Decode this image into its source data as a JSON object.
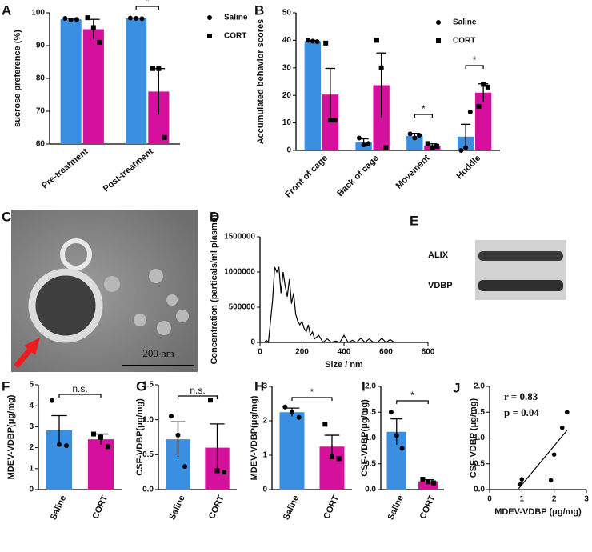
{
  "chart_data": [
    {
      "panel": "A",
      "type": "bar",
      "ylabel": "sucrose preference (%)",
      "categories": [
        "Pre-treatment",
        "Post-treatment"
      ],
      "ylim": [
        60,
        100
      ],
      "yticks": [
        60,
        70,
        80,
        90,
        100
      ],
      "series": [
        {
          "name": "Saline",
          "color": "#3b8fe0",
          "marker": "circle",
          "values": [
            98,
            98.3
          ],
          "errors": [
            0.3,
            0.1
          ],
          "points": [
            [
              98.3,
              97.8,
              98.0
            ],
            [
              98.4,
              98.3,
              98.2
            ]
          ]
        },
        {
          "name": "CORT",
          "color": "#d4109c",
          "marker": "square",
          "values": [
            95,
            76
          ],
          "errors": [
            3,
            7
          ],
          "points": [
            [
              98.5,
              95.5,
              91
            ],
            [
              83,
              83,
              62
            ]
          ]
        }
      ],
      "significance": [
        "*"
      ]
    },
    {
      "panel": "B",
      "type": "bar",
      "ylabel": "Accumulated behavior scores",
      "categories": [
        "Front of cage",
        "Back of cage",
        "Movement",
        "Huddle"
      ],
      "ylim": [
        0,
        50
      ],
      "yticks": [
        0,
        10,
        20,
        30,
        40,
        50
      ],
      "series": [
        {
          "name": "Saline",
          "color": "#3b8fe0",
          "marker": "circle",
          "values": [
            39.7,
            3,
            5.3,
            5
          ],
          "errors": [
            0.3,
            1.2,
            0.9,
            4.5
          ],
          "points": [
            [
              40,
              39.7,
              39.5
            ],
            [
              4.5,
              2,
              2.5
            ],
            [
              6,
              4.5,
              5.5
            ],
            [
              0,
              1,
              14
            ]
          ]
        },
        {
          "name": "CORT",
          "color": "#d4109c",
          "marker": "square",
          "values": [
            20.3,
            23.7,
            1.7,
            21
          ],
          "errors": [
            9.5,
            11.7,
            0.7,
            3.2
          ],
          "points": [
            [
              39,
              11,
              11
            ],
            [
              40,
              30,
              1
            ],
            [
              2.5,
              1,
              1.5
            ],
            [
              16,
              24,
              23
            ]
          ]
        }
      ],
      "significance": [
        "*",
        "*"
      ]
    },
    {
      "panel": "D",
      "type": "line",
      "xlabel": "Size / nm",
      "ylabel": "Concentration (particals/ml plasma)",
      "color": "#000000",
      "xlim": [
        0,
        800
      ],
      "xticks": [
        0,
        200,
        400,
        600,
        800
      ],
      "ylim": [
        0,
        1500000
      ],
      "yticks": [
        0,
        500000,
        1000000,
        1500000
      ],
      "x": [
        20,
        30,
        40,
        50,
        60,
        70,
        80,
        90,
        100,
        110,
        120,
        130,
        140,
        150,
        160,
        170,
        180,
        190,
        200,
        210,
        220,
        230,
        240,
        250,
        260,
        280,
        300,
        320,
        340,
        360,
        380,
        400,
        420,
        440,
        460,
        480,
        500,
        520,
        540,
        560,
        580,
        600,
        620,
        640
      ],
      "values": [
        0,
        30000,
        0,
        300000,
        600000,
        1070000,
        1000000,
        1070000,
        700000,
        1000000,
        800000,
        650000,
        900000,
        550000,
        700000,
        400000,
        300000,
        250000,
        300000,
        200000,
        150000,
        250000,
        100000,
        150000,
        50000,
        100000,
        0,
        50000,
        0,
        20000,
        0,
        100000,
        0,
        30000,
        0,
        60000,
        0,
        50000,
        0,
        0,
        60000,
        0,
        40000,
        0
      ]
    },
    {
      "panel": "F",
      "type": "bar",
      "ylabel": "MDEV-VDBP(μg/mg)",
      "categories": [
        "Saline",
        "CORT"
      ],
      "ylim": [
        0,
        5
      ],
      "yticks": [
        0,
        1,
        2,
        3,
        4,
        5
      ],
      "colors": [
        "#3b8fe0",
        "#d4109c"
      ],
      "markers": [
        "circle",
        "square"
      ],
      "values": [
        2.83,
        2.4
      ],
      "errors": [
        0.7,
        0.25
      ],
      "points": [
        [
          4.25,
          2.15,
          2.1
        ],
        [
          2.65,
          2.5,
          2.05
        ]
      ],
      "significance": [
        "n.s."
      ]
    },
    {
      "panel": "G",
      "type": "bar",
      "ylabel": "CSF-VDBP(μg/mg)",
      "categories": [
        "Saline",
        "CORT"
      ],
      "ylim": [
        0,
        1.5
      ],
      "yticks": [
        {
          "value": 0,
          "label": "0.0"
        },
        {
          "value": 0.5,
          "label": "0.5"
        },
        {
          "value": 1,
          "label": "1.0"
        },
        {
          "value": 1.5,
          "label": "1.5"
        }
      ],
      "colors": [
        "#3b8fe0",
        "#d4109c"
      ],
      "markers": [
        "circle",
        "square"
      ],
      "values": [
        0.72,
        0.6
      ],
      "errors": [
        0.25,
        0.34
      ],
      "points": [
        [
          1.05,
          0.78,
          0.33
        ],
        [
          1.28,
          0.27,
          0.25
        ]
      ],
      "significance": [
        "n.s."
      ]
    },
    {
      "panel": "H",
      "type": "bar",
      "ylabel": "MDEV-VDBP(μg/mg)",
      "categories": [
        "Saline",
        "CORT"
      ],
      "ylim": [
        0,
        3
      ],
      "yticks": [
        0,
        1,
        2,
        3
      ],
      "colors": [
        "#3b8fe0",
        "#d4109c"
      ],
      "markers": [
        "circle",
        "square"
      ],
      "values": [
        2.25,
        1.25
      ],
      "errors": [
        0.12,
        0.33
      ],
      "points": [
        [
          2.4,
          2.25,
          2.1
        ],
        [
          1.9,
          0.95,
          0.9
        ]
      ],
      "significance": [
        "*"
      ]
    },
    {
      "panel": "I",
      "type": "bar",
      "ylabel": "CSF-VDBP(μg/mg)",
      "categories": [
        "Saline",
        "CORT"
      ],
      "ylim": [
        0,
        2
      ],
      "yticks": [
        {
          "value": 0,
          "label": "0.0"
        },
        {
          "value": 0.5,
          "label": "0.5"
        },
        {
          "value": 1,
          "label": "1.0"
        },
        {
          "value": 1.5,
          "label": "1.5"
        },
        {
          "value": 2,
          "label": "2.0"
        }
      ],
      "colors": [
        "#3b8fe0",
        "#d4109c"
      ],
      "markers": [
        "circle",
        "square"
      ],
      "values": [
        1.12,
        0.16
      ],
      "errors": [
        0.25,
        0.03
      ],
      "points": [
        [
          1.5,
          1.05,
          0.8
        ],
        [
          0.2,
          0.15,
          0.13
        ]
      ],
      "significance": [
        "*"
      ]
    },
    {
      "panel": "J",
      "type": "scatter",
      "xlabel": "MDEV-VDBP (μg/mg)",
      "ylabel": "CSF-VDBP (μg/mg)",
      "color": "#000000",
      "xlim": [
        0,
        3
      ],
      "xticks": [
        0,
        1,
        2,
        3
      ],
      "ylim": [
        0,
        2
      ],
      "yticks": [
        {
          "value": 0,
          "label": "0.0"
        },
        {
          "value": 0.5,
          "label": "0.5"
        },
        {
          "value": 1,
          "label": "1.0"
        },
        {
          "value": 1.5,
          "label": "1.5"
        },
        {
          "value": 2,
          "label": "2.0"
        }
      ],
      "x": [
        0.95,
        1.0,
        1.9,
        2.0,
        2.25,
        2.4
      ],
      "values": [
        0.1,
        0.2,
        0.18,
        0.68,
        1.2,
        1.5
      ],
      "fit_line": {
        "x": [
          0.9,
          2.4
        ],
        "y": [
          0.02,
          1.15
        ]
      },
      "annotations": [
        "r = 0.83",
        "p = 0.04"
      ]
    }
  ],
  "panel_c": {
    "label": "C",
    "scale_bar": "200 nm"
  },
  "panel_e": {
    "label": "E",
    "bands": [
      "ALIX",
      "VDBP"
    ]
  }
}
